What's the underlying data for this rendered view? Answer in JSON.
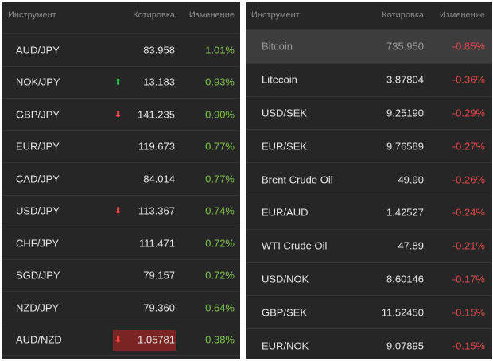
{
  "left": {
    "header": {
      "name": "Инструмент",
      "price": "Котировка",
      "change": "Изменение"
    },
    "rows": [
      {
        "name": "AUD/JPY",
        "price": "83.958",
        "change": "1.01%",
        "arrow": ""
      },
      {
        "name": "NOK/JPY",
        "price": "13.183",
        "change": "0.93%",
        "arrow": "up"
      },
      {
        "name": "GBP/JPY",
        "price": "141.235",
        "change": "0.90%",
        "arrow": "down"
      },
      {
        "name": "EUR/JPY",
        "price": "119.673",
        "change": "0.77%",
        "arrow": ""
      },
      {
        "name": "CAD/JPY",
        "price": "84.014",
        "change": "0.77%",
        "arrow": ""
      },
      {
        "name": "USD/JPY",
        "price": "113.367",
        "change": "0.74%",
        "arrow": "down"
      },
      {
        "name": "CHF/JPY",
        "price": "111.471",
        "change": "0.72%",
        "arrow": ""
      },
      {
        "name": "SGD/JPY",
        "price": "79.157",
        "change": "0.72%",
        "arrow": ""
      },
      {
        "name": "NZD/JPY",
        "price": "79.360",
        "change": "0.64%",
        "arrow": ""
      },
      {
        "name": "AUD/NZD",
        "price": "1.05781",
        "change": "0.38%",
        "arrow": "down",
        "flash": true
      }
    ]
  },
  "right": {
    "header": {
      "name": "Инструмент",
      "price": "Котировка",
      "change": "Изменение"
    },
    "rows": [
      {
        "name": "Bitcoin",
        "price": "735.950",
        "change": "-0.85%",
        "highlight": true
      },
      {
        "name": "Litecoin",
        "price": "3.87804",
        "change": "-0.36%"
      },
      {
        "name": "USD/SEK",
        "price": "9.25190",
        "change": "-0.29%"
      },
      {
        "name": "EUR/SEK",
        "price": "9.76589",
        "change": "-0.27%"
      },
      {
        "name": "Brent Crude Oil",
        "price": "49.90",
        "change": "-0.26%"
      },
      {
        "name": "EUR/AUD",
        "price": "1.42527",
        "change": "-0.24%"
      },
      {
        "name": "WTI Crude Oil",
        "price": "47.89",
        "change": "-0.21%"
      },
      {
        "name": "USD/NOK",
        "price": "8.60146",
        "change": "-0.17%"
      },
      {
        "name": "GBP/SEK",
        "price": "11.52450",
        "change": "-0.15%"
      },
      {
        "name": "EUR/NOK",
        "price": "9.07895",
        "change": "-0.15%"
      }
    ]
  },
  "icons": {
    "up": "arrow-up-icon",
    "down": "arrow-down-icon"
  },
  "colors": {
    "positive": "#7ec24a",
    "negative": "#e04848",
    "arrow_up": "#2fbf4a",
    "arrow_down": "#ef4444",
    "flash": "#7a2424"
  }
}
